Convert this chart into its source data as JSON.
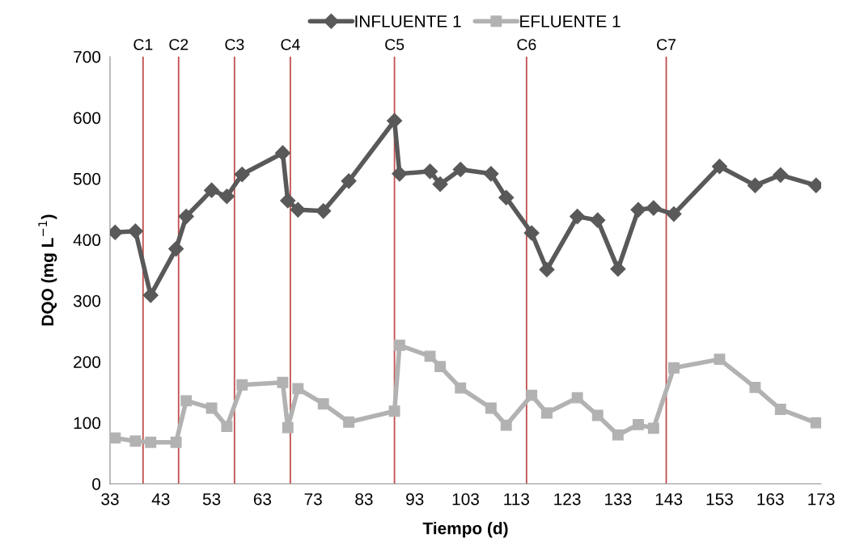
{
  "chart_data": {
    "type": "line",
    "xlabel": "Tiempo (d)",
    "ylabel": "DQO (mg L$^{−1}$)",
    "x": [
      34,
      38,
      41,
      46,
      48,
      53,
      56,
      59,
      67,
      68,
      70,
      75,
      80,
      89,
      90,
      96,
      98,
      102,
      108,
      111,
      116,
      119,
      125,
      129,
      133,
      137,
      140,
      144,
      153,
      160,
      165,
      172
    ],
    "series": [
      {
        "name": "INFLUENTE 1",
        "color": "#595959",
        "marker": "diamond",
        "values": [
          412,
          414,
          309,
          385,
          438,
          481,
          471,
          507,
          542,
          464,
          449,
          447,
          496,
          595,
          508,
          512,
          491,
          515,
          508,
          469,
          411,
          351,
          438,
          432,
          352,
          449,
          452,
          442,
          520,
          489,
          506,
          489
        ]
      },
      {
        "name": "EFLUENTE 1",
        "color": "#b2b2b2",
        "marker": "square",
        "values": [
          75,
          70,
          68,
          68,
          136,
          124,
          94,
          162,
          166,
          92,
          156,
          131,
          101,
          119,
          227,
          209,
          192,
          157,
          124,
          96,
          145,
          116,
          141,
          112,
          80,
          97,
          91,
          190,
          204,
          158,
          122,
          100
        ]
      }
    ],
    "xlim": [
      33,
      173
    ],
    "xticks": [
      33,
      43,
      53,
      63,
      73,
      83,
      93,
      103,
      113,
      123,
      133,
      143,
      153,
      163,
      173
    ],
    "ylim": [
      0,
      700
    ],
    "yticks": [
      0,
      100,
      200,
      300,
      400,
      500,
      600,
      700
    ],
    "grid": false,
    "legend": "top",
    "ref_lines": [
      {
        "axis": "x",
        "value": 39.5,
        "label": "C1",
        "color": "#c0504d"
      },
      {
        "axis": "x",
        "value": 46.5,
        "label": "C2",
        "color": "#c0504d"
      },
      {
        "axis": "x",
        "value": 57.5,
        "label": "C3",
        "color": "#c0504d"
      },
      {
        "axis": "x",
        "value": 68.5,
        "label": "C4",
        "color": "#c0504d"
      },
      {
        "axis": "x",
        "value": 89,
        "label": "C5",
        "color": "#c0504d"
      },
      {
        "axis": "x",
        "value": 115,
        "label": "C6",
        "color": "#c0504d"
      },
      {
        "axis": "x",
        "value": 142.5,
        "label": "C7",
        "color": "#c0504d"
      }
    ]
  }
}
